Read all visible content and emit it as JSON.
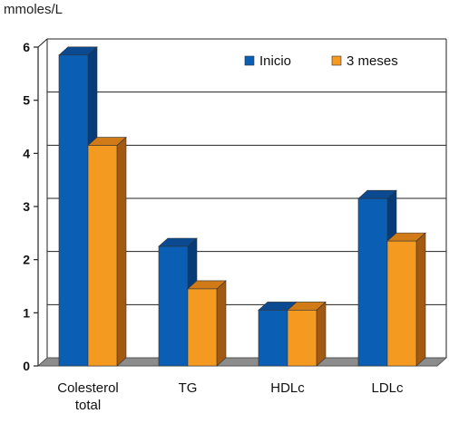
{
  "chart_data": {
    "type": "bar",
    "ylabel": "mmoles/L",
    "ylim": [
      0,
      6
    ],
    "yticks": [
      "0",
      "1",
      "2",
      "3",
      "4",
      "5",
      "6"
    ],
    "grid": true,
    "legend_position": "top-right",
    "categories": [
      [
        "Colesterol",
        "total"
      ],
      [
        "TG"
      ],
      [
        "HDLc"
      ],
      [
        "LDLc"
      ]
    ],
    "series": [
      {
        "name": "Inicio",
        "values": [
          5.85,
          2.25,
          1.05,
          3.15
        ],
        "color": "#0a5fb4",
        "top_color": "#0b4a90",
        "side_color": "#083c78"
      },
      {
        "name": "3 meses",
        "values": [
          4.15,
          1.45,
          1.05,
          2.35
        ],
        "color": "#f49a21",
        "top_color": "#d07a18",
        "side_color": "#a25a12"
      }
    ],
    "floor_color": "#8c8c8c"
  }
}
